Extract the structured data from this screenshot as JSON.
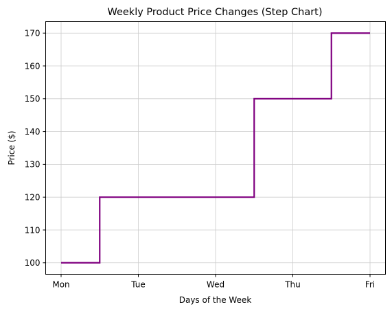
{
  "chart_data": {
    "type": "line",
    "line_style": "step-mid",
    "title": "Weekly Product Price Changes (Step Chart)",
    "xlabel": "Days of the Week",
    "ylabel": "Price ($)",
    "categories": [
      "Mon",
      "Tue",
      "Wed",
      "Thu",
      "Fri"
    ],
    "series": [
      {
        "values": [
          100,
          120,
          120,
          150,
          170
        ]
      }
    ],
    "ylim": [
      96.5,
      173.5
    ],
    "y_ticks": [
      100,
      110,
      120,
      130,
      140,
      150,
      160,
      170
    ],
    "grid": true,
    "line_color": "#800080",
    "grid_color": "#cccccc"
  }
}
